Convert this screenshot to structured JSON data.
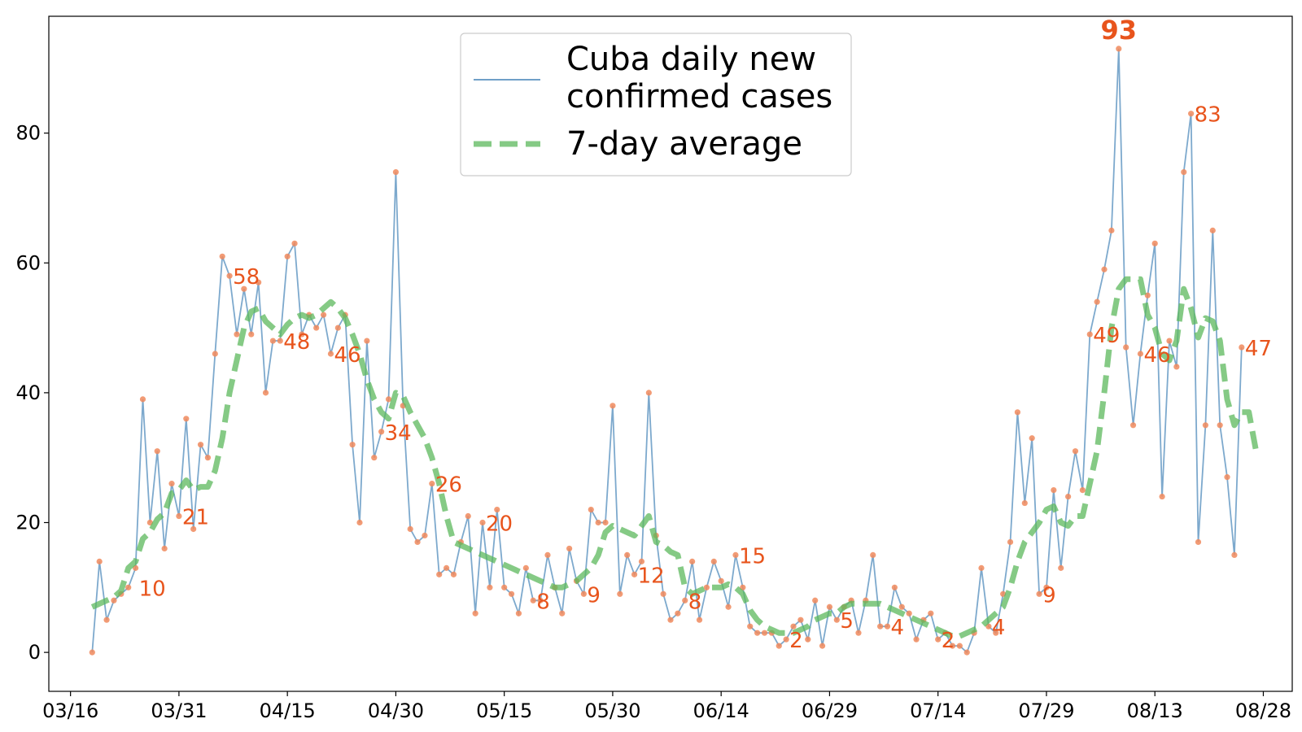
{
  "chart_data": {
    "type": "line",
    "title": "",
    "xlabel": "",
    "ylabel": "",
    "x_start": "03/19",
    "x_end": "08/27",
    "xlim": [
      "03/13",
      "09/01"
    ],
    "ylim": [
      -6,
      98
    ],
    "x_ticks": [
      "03/16",
      "03/31",
      "04/15",
      "04/30",
      "05/15",
      "05/30",
      "06/14",
      "06/29",
      "07/14",
      "07/29",
      "08/13",
      "08/28"
    ],
    "y_ticks": [
      0,
      20,
      40,
      60,
      80
    ],
    "grid": false,
    "legend_position": "top-center",
    "series": [
      {
        "name": "Cuba daily new confirmed cases",
        "color": "#6fa0c8",
        "values": [
          0,
          14,
          5,
          8,
          9,
          10,
          13,
          39,
          20,
          31,
          16,
          26,
          21,
          36,
          19,
          32,
          30,
          46,
          61,
          58,
          49,
          56,
          49,
          57,
          40,
          48,
          48,
          61,
          63,
          49,
          52,
          50,
          52,
          46,
          50,
          52,
          32,
          20,
          48,
          30,
          34,
          39,
          74,
          38,
          19,
          17,
          18,
          26,
          12,
          13,
          12,
          17,
          21,
          6,
          20,
          10,
          22,
          10,
          9,
          6,
          13,
          8,
          8,
          15,
          10,
          6,
          16,
          11,
          9,
          22,
          20,
          20,
          38,
          9,
          15,
          12,
          14,
          40,
          18,
          9,
          5,
          6,
          8,
          14,
          5,
          10,
          14,
          11,
          7,
          15,
          10,
          4,
          3,
          3,
          3,
          1,
          2,
          4,
          5,
          2,
          8,
          1,
          7,
          5,
          7,
          8,
          3,
          8,
          15,
          4,
          4,
          10,
          7,
          6,
          2,
          5,
          6,
          2,
          3,
          1,
          1,
          0,
          3,
          13,
          4,
          3,
          9,
          17,
          37,
          23,
          33,
          9,
          10,
          25,
          13,
          24,
          31,
          25,
          49,
          54,
          59,
          65,
          93,
          47,
          35,
          46,
          55,
          63,
          24,
          48,
          44,
          74,
          83,
          17,
          35,
          65,
          35,
          27,
          15,
          47
        ]
      },
      {
        "name": "7-day average",
        "color": "#5cb85c",
        "values": [
          7,
          7.5,
          8,
          8.5,
          9.5,
          13,
          14,
          17.5,
          18.5,
          20.5,
          21.5,
          24.5,
          25,
          26.5,
          25,
          25.5,
          25.5,
          28,
          33,
          40,
          45,
          50,
          52.5,
          53,
          51,
          50,
          49,
          50.5,
          51.5,
          52,
          51.5,
          52,
          53,
          54,
          53,
          51.5,
          49,
          46,
          42,
          39,
          37,
          36,
          40,
          39.5,
          37,
          35,
          33,
          30,
          26,
          21,
          17,
          16.5,
          16,
          15.5,
          15,
          14.5,
          14,
          13.5,
          13,
          12.5,
          12,
          11.5,
          11,
          10.5,
          10,
          10,
          10.5,
          11,
          12,
          13,
          15,
          18.5,
          19.5,
          19,
          18.5,
          18,
          19.5,
          21,
          17,
          16.5,
          15.5,
          15,
          10,
          9,
          9.5,
          10,
          10,
          10,
          10.5,
          10,
          9,
          6.5,
          5,
          4,
          3.5,
          3,
          3,
          3,
          3.5,
          4,
          5,
          5.5,
          6,
          6,
          7,
          7.5,
          7.5,
          7.5,
          7.5,
          7.5,
          7,
          6.5,
          6,
          5.5,
          5,
          4.5,
          4,
          3.5,
          3,
          2.5,
          2.5,
          3,
          3.5,
          4,
          5,
          6,
          7,
          10,
          14,
          17,
          18.5,
          20,
          22,
          22.5,
          20,
          19.5,
          21,
          21,
          26,
          31,
          40,
          50,
          56,
          57.5,
          57.5,
          57.5,
          52,
          50,
          46,
          45,
          48,
          56,
          53,
          48.5,
          51.5,
          51,
          48,
          39,
          35,
          37,
          37,
          31
        ]
      }
    ],
    "annotations": [
      {
        "index": 6,
        "value": 10,
        "text": "10"
      },
      {
        "index": 12,
        "value": 21,
        "text": "21"
      },
      {
        "index": 19,
        "value": 58,
        "text": "58"
      },
      {
        "index": 26,
        "value": 48,
        "text": "48"
      },
      {
        "index": 33,
        "value": 46,
        "text": "46"
      },
      {
        "index": 40,
        "value": 34,
        "text": "34"
      },
      {
        "index": 47,
        "value": 26,
        "text": "26"
      },
      {
        "index": 54,
        "value": 20,
        "text": "20"
      },
      {
        "index": 61,
        "value": 8,
        "text": "8"
      },
      {
        "index": 68,
        "value": 9,
        "text": "9"
      },
      {
        "index": 75,
        "value": 12,
        "text": "12"
      },
      {
        "index": 82,
        "value": 8,
        "text": "8"
      },
      {
        "index": 89,
        "value": 15,
        "text": "15"
      },
      {
        "index": 96,
        "value": 2,
        "text": "2"
      },
      {
        "index": 103,
        "value": 5,
        "text": "5"
      },
      {
        "index": 110,
        "value": 4,
        "text": "4"
      },
      {
        "index": 117,
        "value": 2,
        "text": "2"
      },
      {
        "index": 124,
        "value": 4,
        "text": "4"
      },
      {
        "index": 131,
        "value": 9,
        "text": "9"
      },
      {
        "index": 138,
        "value": 49,
        "text": "49"
      },
      {
        "index": 142,
        "value": 93,
        "text": "93",
        "bold": true
      },
      {
        "index": 145,
        "value": 46,
        "text": "46"
      },
      {
        "index": 152,
        "value": 83,
        "text": "83"
      },
      {
        "index": 159,
        "value": 47,
        "text": "47"
      }
    ],
    "annotation_color": "#e8541c",
    "marker_color": "#f08a5d",
    "legend_entries": [
      {
        "label_lines": [
          "Cuba daily new",
          "confirmed cases"
        ],
        "style": "thin-line",
        "color": "#6fa0c8"
      },
      {
        "label_lines": [
          "7-day average"
        ],
        "style": "dashed",
        "color": "#5cb85c"
      }
    ]
  }
}
